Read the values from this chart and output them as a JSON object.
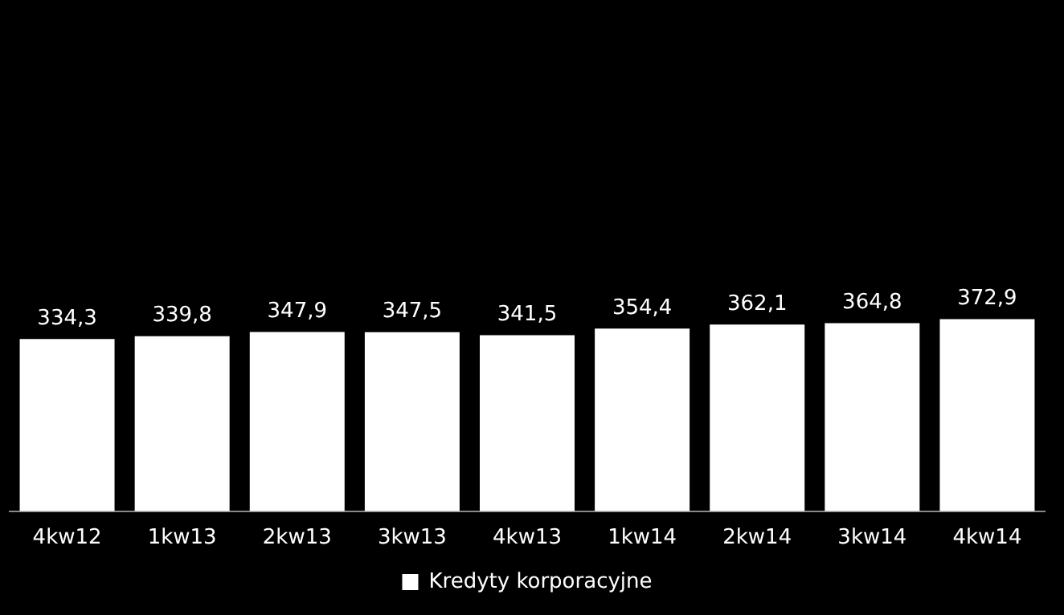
{
  "chart_data": {
    "type": "bar",
    "categories": [
      "4kw12",
      "1kw13",
      "2kw13",
      "3kw13",
      "4kw13",
      "1kw14",
      "2kw14",
      "3kw14",
      "4kw14"
    ],
    "series": [
      {
        "name": "Kredyty korporacyjne",
        "color": "#ffffff",
        "values": [
          334.3,
          339.8,
          347.9,
          347.5,
          341.5,
          354.4,
          362.1,
          364.8,
          372.9
        ],
        "value_labels": [
          "334,3",
          "339,8",
          "347,9",
          "347,5",
          "341,5",
          "354,4",
          "362,1",
          "364,8",
          "372,9"
        ]
      }
    ],
    "tick_labels": "x",
    "grid": false,
    "legend": "bottom"
  }
}
